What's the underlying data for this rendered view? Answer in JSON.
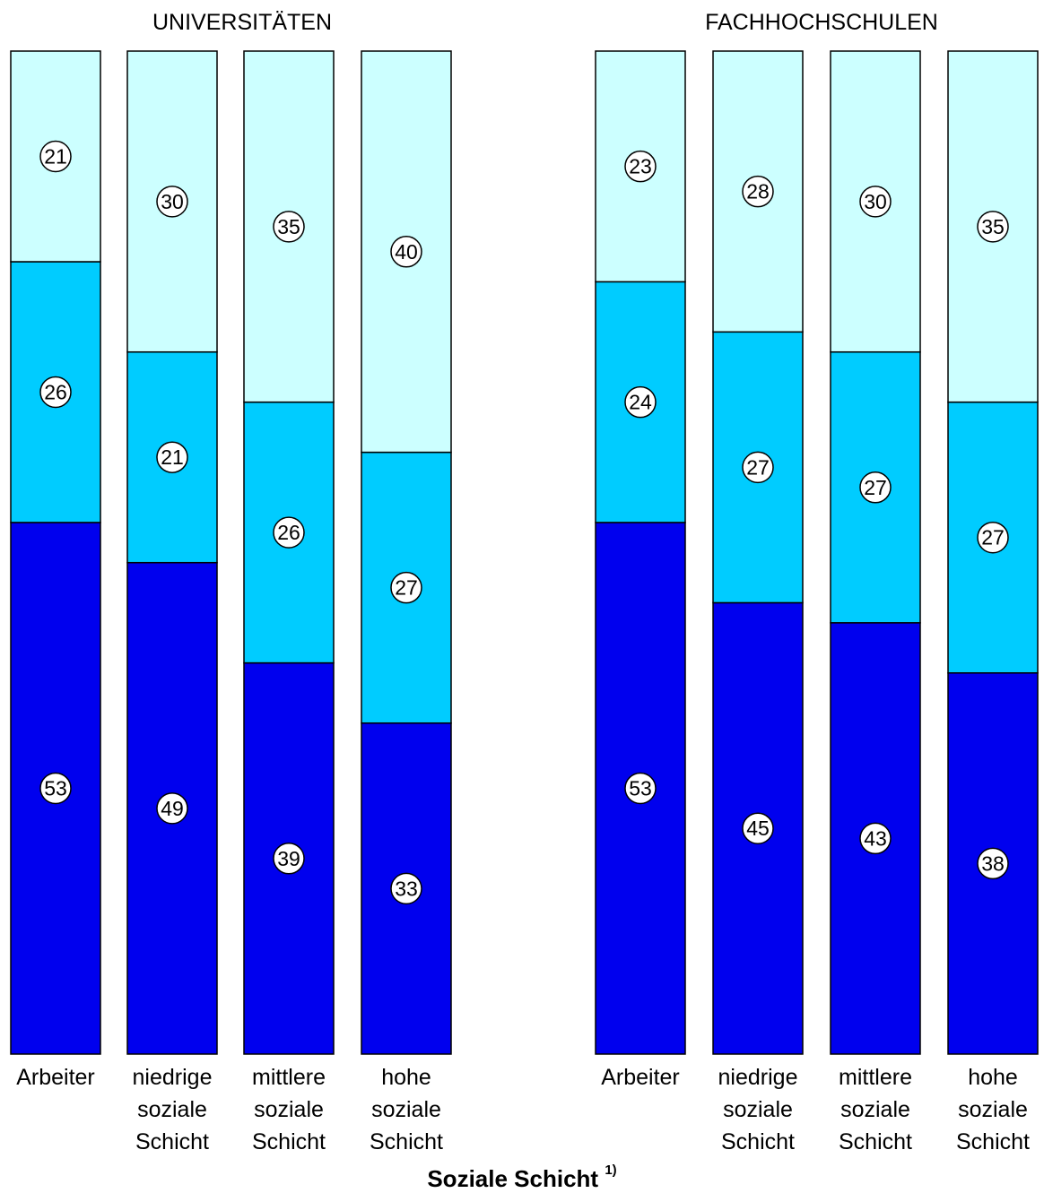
{
  "chart_data": {
    "type": "bar",
    "stacked": true,
    "percent": true,
    "xlabel": "Soziale Schicht",
    "xlabel_footnote": "1)",
    "series_colors": [
      "#0000EE",
      "#00CCFF",
      "#CCFFFF"
    ],
    "panels": [
      {
        "title": "UNIVERSITÄTEN",
        "categories": [
          "Arbeiter",
          "niedrige soziale Schicht",
          "mittlere soziale Schicht",
          "hohe soziale Schicht"
        ],
        "category_lines": [
          [
            "Arbeiter"
          ],
          [
            "niedrige",
            "soziale",
            "Schicht"
          ],
          [
            "mittlere",
            "soziale",
            "Schicht"
          ],
          [
            "hohe",
            "soziale",
            "Schicht"
          ]
        ],
        "series": [
          {
            "values": [
              53,
              49,
              39,
              33
            ]
          },
          {
            "values": [
              26,
              21,
              26,
              27
            ]
          },
          {
            "values": [
              21,
              30,
              35,
              40
            ]
          }
        ]
      },
      {
        "title": "FACHHOCHSCHULEN",
        "categories": [
          "Arbeiter",
          "niedrige soziale Schicht",
          "mittlere soziale Schicht",
          "hohe soziale Schicht"
        ],
        "category_lines": [
          [
            "Arbeiter"
          ],
          [
            "niedrige",
            "soziale",
            "Schicht"
          ],
          [
            "mittlere",
            "soziale",
            "Schicht"
          ],
          [
            "hohe",
            "soziale",
            "Schicht"
          ]
        ],
        "series": [
          {
            "values": [
              53,
              45,
              43,
              38
            ]
          },
          {
            "values": [
              24,
              27,
              27,
              27
            ]
          },
          {
            "values": [
              23,
              28,
              30,
              35
            ]
          }
        ]
      }
    ]
  }
}
